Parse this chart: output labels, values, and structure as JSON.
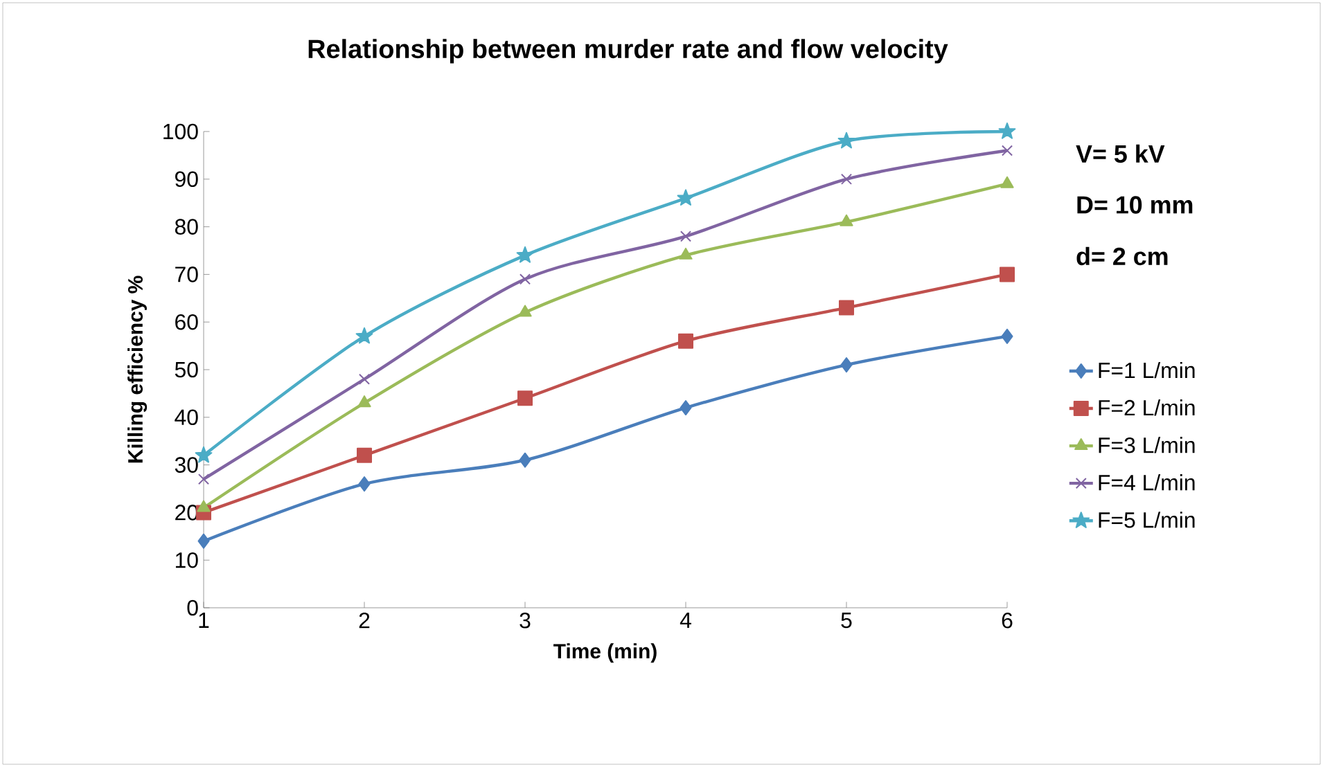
{
  "chart_data": {
    "type": "line",
    "title": "Relationship between murder rate and flow velocity",
    "xlabel": "Time (min)",
    "ylabel": "Killing efficiency %",
    "x": [
      1,
      2,
      3,
      4,
      5,
      6
    ],
    "xlim": [
      1,
      6
    ],
    "xticks": [
      1,
      2,
      3,
      4,
      5,
      6
    ],
    "ylim": [
      0,
      100
    ],
    "yticks": [
      0,
      10,
      20,
      30,
      40,
      50,
      60,
      70,
      80,
      90,
      100
    ],
    "grid": false,
    "legend": "right",
    "line_style": "solid",
    "annotations": [
      "V= 5 kV",
      "D= 10 mm",
      "d= 2 cm"
    ],
    "series": [
      {
        "name": "F=1 L/min",
        "color": "#4a7ebb",
        "marker": "diamond",
        "values": [
          14,
          26,
          31,
          42,
          51,
          57
        ]
      },
      {
        "name": "F=2 L/min",
        "color": "#c0504d",
        "marker": "square",
        "values": [
          20,
          32,
          44,
          56,
          63,
          70
        ]
      },
      {
        "name": "F=3 L/min",
        "color": "#9bbb59",
        "marker": "triangle",
        "values": [
          21,
          43,
          62,
          74,
          81,
          89
        ]
      },
      {
        "name": "F=4 L/min",
        "color": "#8064a2",
        "marker": "cross",
        "values": [
          27,
          48,
          69,
          78,
          90,
          96
        ]
      },
      {
        "name": "F=5 L/min",
        "color": "#4bacc6",
        "marker": "star",
        "values": [
          32,
          57,
          74,
          86,
          98,
          100
        ]
      }
    ]
  }
}
